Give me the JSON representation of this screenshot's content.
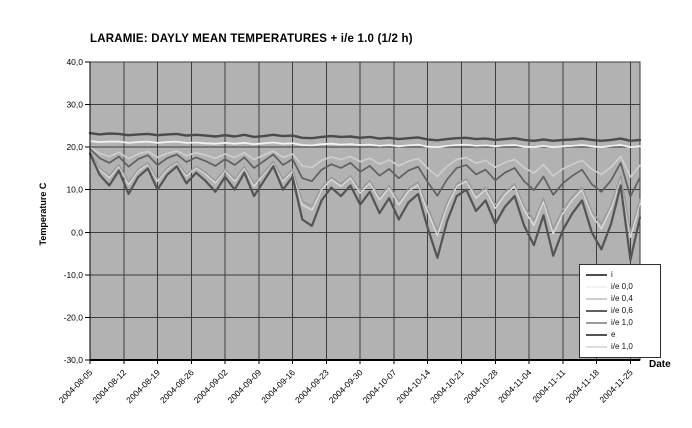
{
  "title": "LARAMIE: DAYLY MEAN TEMPERATURES + i/e 1.0 (1/2 h)",
  "chart_data": {
    "type": "line",
    "title": "LARAMIE: DAYLY MEAN TEMPERATURES + i/e 1.0 (1/2 h)",
    "xlabel": "Date",
    "ylabel": "Temperature C",
    "ylim": [
      -30,
      40
    ],
    "y_tick_step": 10,
    "y_tick_labels": [
      "40,0",
      "30,0",
      "20,0",
      "10,0",
      "0,0",
      "-10,0",
      "-20,0",
      "-30,0"
    ],
    "x_tick_labels": [
      "2004-08-05",
      "2004-08-12",
      "2004-08-19",
      "2004-08-26",
      "2004-09-02",
      "2004-09-09",
      "2004-09-16",
      "2004-09-23",
      "2004-09-30",
      "2004-10-07",
      "2004-10-14",
      "2004-10-21",
      "2004-10-28",
      "2004-11-04",
      "2004-11-11",
      "2004-11-18",
      "2004-11-25"
    ],
    "x_step_days": 2,
    "x_span_days": 114,
    "grid": true,
    "legend_position": "bottom-right",
    "plot_bg": "#b2b2b2",
    "grid_color": "#3d3d3d",
    "x_dates": [
      "2004-08-05",
      "2004-08-07",
      "2004-08-09",
      "2004-08-11",
      "2004-08-13",
      "2004-08-15",
      "2004-08-17",
      "2004-08-19",
      "2004-08-21",
      "2004-08-23",
      "2004-08-25",
      "2004-08-27",
      "2004-08-29",
      "2004-08-31",
      "2004-09-02",
      "2004-09-04",
      "2004-09-06",
      "2004-09-08",
      "2004-09-10",
      "2004-09-12",
      "2004-09-14",
      "2004-09-16",
      "2004-09-18",
      "2004-09-20",
      "2004-09-22",
      "2004-09-24",
      "2004-09-26",
      "2004-09-28",
      "2004-09-30",
      "2004-10-02",
      "2004-10-04",
      "2004-10-06",
      "2004-10-08",
      "2004-10-10",
      "2004-10-12",
      "2004-10-14",
      "2004-10-16",
      "2004-10-18",
      "2004-10-20",
      "2004-10-22",
      "2004-10-24",
      "2004-10-26",
      "2004-10-28",
      "2004-10-30",
      "2004-11-01",
      "2004-11-03",
      "2004-11-05",
      "2004-11-07",
      "2004-11-09",
      "2004-11-11",
      "2004-11-13",
      "2004-11-15",
      "2004-11-17",
      "2004-11-19",
      "2004-11-21",
      "2004-11-23",
      "2004-11-25",
      "2004-11-27"
    ],
    "series": [
      {
        "name": "i",
        "color": "#4b4b4b",
        "width": 2.4,
        "values": [
          23.3,
          23.0,
          23.2,
          23.1,
          22.8,
          23.0,
          23.1,
          22.8,
          23.0,
          23.1,
          22.7,
          22.9,
          22.7,
          22.5,
          22.8,
          22.5,
          22.9,
          22.4,
          22.6,
          22.9,
          22.6,
          22.7,
          22.2,
          22.1,
          22.4,
          22.6,
          22.4,
          22.5,
          22.2,
          22.4,
          22.0,
          22.2,
          21.9,
          22.1,
          22.3,
          21.8,
          21.6,
          21.9,
          22.1,
          22.2,
          21.9,
          22.0,
          21.7,
          21.9,
          22.1,
          21.7,
          21.5,
          21.8,
          21.5,
          21.7,
          21.8,
          22.0,
          21.7,
          21.5,
          21.7,
          22.0,
          21.5,
          21.7
        ]
      },
      {
        "name": "i/e 0,0",
        "color": "#f2f2f2",
        "width": 1.8,
        "values": [
          21.4,
          21.2,
          21.3,
          21.3,
          21.0,
          21.2,
          21.3,
          21.0,
          21.2,
          21.3,
          21.0,
          21.1,
          20.9,
          20.8,
          21.0,
          20.8,
          21.0,
          20.7,
          20.9,
          21.1,
          20.8,
          20.9,
          20.5,
          20.4,
          20.7,
          20.8,
          20.6,
          20.7,
          20.5,
          20.6,
          20.3,
          20.5,
          20.2,
          20.4,
          20.6,
          20.1,
          20.0,
          20.3,
          20.5,
          20.6,
          20.3,
          20.4,
          20.2,
          20.4,
          20.5,
          20.1,
          20.0,
          20.3,
          20.0,
          20.2,
          20.3,
          20.5,
          20.2,
          20.0,
          20.3,
          20.5,
          20.0,
          20.2
        ]
      },
      {
        "name": "i/e 0,4",
        "color": "#cecece",
        "width": 1.7,
        "values": [
          19.9,
          18.5,
          17.8,
          18.8,
          17.3,
          18.4,
          19.0,
          17.6,
          18.5,
          19.1,
          18.0,
          18.7,
          18.1,
          17.4,
          18.4,
          17.6,
          18.7,
          17.1,
          18.1,
          19.1,
          17.6,
          18.4,
          15.6,
          15.2,
          16.9,
          17.7,
          17.1,
          17.8,
          16.6,
          17.4,
          16.0,
          17.0,
          15.6,
          16.7,
          17.3,
          15.0,
          13.1,
          15.5,
          17.1,
          17.6,
          16.2,
          16.9,
          15.3,
          16.4,
          17.1,
          15.2,
          13.9,
          15.9,
          13.2,
          14.9,
          16.0,
          16.9,
          14.8,
          13.6,
          15.3,
          17.8,
          13.0,
          15.7
        ]
      },
      {
        "name": "i/e 0,6",
        "color": "#606060",
        "width": 1.7,
        "values": [
          19.6,
          17.4,
          16.3,
          17.8,
          15.4,
          17.2,
          18.1,
          15.8,
          17.4,
          18.3,
          16.5,
          17.6,
          16.7,
          15.6,
          17.2,
          15.8,
          17.6,
          15.1,
          16.7,
          18.3,
          15.8,
          17.2,
          12.7,
          12.0,
          14.7,
          16.0,
          15.1,
          16.3,
          14.2,
          15.6,
          13.3,
          14.9,
          12.7,
          14.5,
          15.4,
          11.8,
          8.6,
          12.4,
          15.1,
          15.8,
          13.6,
          14.7,
          12.2,
          14.0,
          15.1,
          12.0,
          9.9,
          13.1,
          8.8,
          11.5,
          13.3,
          14.7,
          11.3,
          9.5,
          12.2,
          16.3,
          8.4,
          12.9
        ]
      },
      {
        "name": "i/e 1,0",
        "color": "#9b9b9b",
        "width": 1.5,
        "values": [
          18.9,
          15.1,
          13.3,
          15.9,
          11.8,
          14.8,
          16.3,
          12.5,
          15.1,
          16.6,
          13.6,
          15.5,
          14.0,
          12.1,
          14.8,
          12.5,
          15.5,
          11.4,
          14.0,
          16.6,
          12.5,
          14.8,
          7.3,
          6.1,
          10.6,
          12.9,
          11.4,
          13.3,
          9.9,
          12.1,
          8.4,
          11.0,
          7.3,
          10.3,
          11.8,
          5.8,
          0.5,
          6.9,
          11.4,
          12.5,
          8.8,
          10.6,
          6.5,
          9.5,
          11.4,
          6.1,
          2.8,
          8.0,
          0.9,
          5.4,
          8.4,
          10.6,
          5.0,
          2.0,
          6.5,
          13.3,
          0.1,
          7.6
        ]
      },
      {
        "name": "e",
        "color": "#545454",
        "width": 2.2,
        "values": [
          18.5,
          13.5,
          11.0,
          14.5,
          9.0,
          13.0,
          15.0,
          10.0,
          13.5,
          15.5,
          11.5,
          14.0,
          12.0,
          9.5,
          13.0,
          10.0,
          14.0,
          8.5,
          12.0,
          15.5,
          10.0,
          13.0,
          3.0,
          1.5,
          7.5,
          10.5,
          8.5,
          11.0,
          6.5,
          9.5,
          4.5,
          8.0,
          3.0,
          7.0,
          9.0,
          1.0,
          -6.0,
          2.5,
          8.5,
          10.0,
          5.0,
          7.5,
          2.0,
          6.0,
          8.5,
          1.5,
          -3.0,
          4.0,
          -5.5,
          0.5,
          4.5,
          7.5,
          0.0,
          -4.0,
          2.0,
          11.0,
          -6.5,
          3.5
        ]
      },
      {
        "name": "i/e 1,0",
        "color": "#dddddd",
        "width": 1.3,
        "values": [
          18.8,
          14.8,
          12.8,
          15.6,
          11.2,
          14.4,
          16.0,
          12.0,
          14.8,
          16.4,
          13.2,
          15.2,
          13.6,
          11.6,
          14.4,
          12.0,
          15.2,
          10.8,
          13.6,
          16.4,
          12.0,
          14.4,
          6.4,
          5.2,
          10.0,
          12.4,
          10.8,
          12.8,
          9.2,
          11.6,
          7.6,
          10.4,
          6.4,
          9.6,
          11.2,
          4.8,
          -0.8,
          6.0,
          10.8,
          12.0,
          8.0,
          10.0,
          5.6,
          8.8,
          10.8,
          5.2,
          1.6,
          7.2,
          -0.4,
          4.4,
          7.6,
          10.0,
          4.0,
          0.8,
          5.6,
          12.8,
          -1.2,
          6.8
        ]
      }
    ]
  }
}
